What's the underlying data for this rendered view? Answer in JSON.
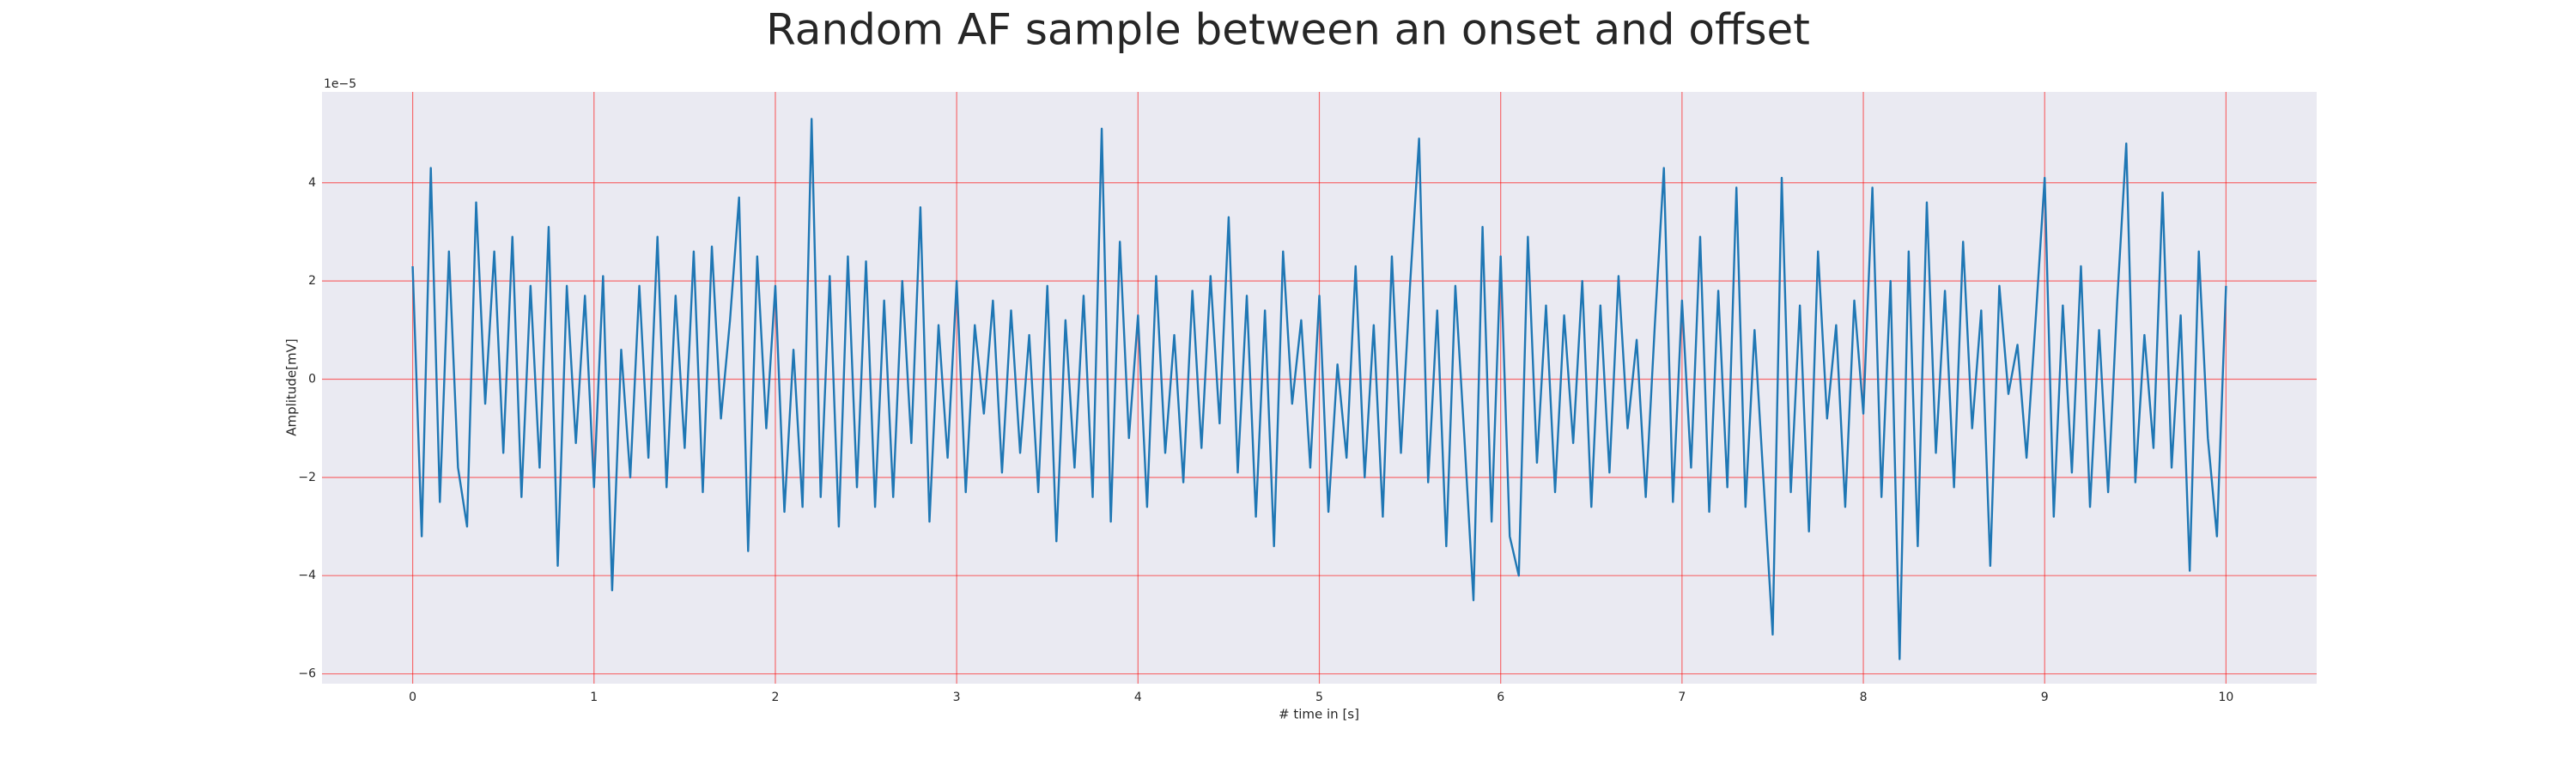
{
  "chart_data": {
    "type": "line",
    "title": "Random AF sample between an onset and offset",
    "xlabel": "# time in [s]",
    "ylabel": "Amplitude[mV]",
    "y_offset_label": "1e−5",
    "color": "#1f77b4",
    "grid": true,
    "grid_color": "#ff0000",
    "background": "#eaeaf2",
    "xlim": [
      -0.5,
      10.5
    ],
    "ylim": [
      -6.2,
      5.85
    ],
    "xticks": [
      0,
      1,
      2,
      3,
      4,
      5,
      6,
      7,
      8,
      9,
      10
    ],
    "yticks": [
      {
        "value": -6,
        "label": "−6"
      },
      {
        "value": -4,
        "label": "−4"
      },
      {
        "value": -2,
        "label": "−2"
      },
      0,
      2,
      4
    ],
    "x": [
      0,
      0.05,
      0.1,
      0.15,
      0.2,
      0.25,
      0.3,
      0.35,
      0.4,
      0.45,
      0.5,
      0.55,
      0.6,
      0.65,
      0.7,
      0.75,
      0.8,
      0.85,
      0.9,
      0.95,
      1,
      1.05,
      1.1,
      1.15,
      1.2,
      1.25,
      1.3,
      1.35,
      1.4,
      1.45,
      1.5,
      1.55,
      1.6,
      1.65,
      1.7,
      1.75,
      1.8,
      1.85,
      1.9,
      1.95,
      2,
      2.05,
      2.1,
      2.15,
      2.2,
      2.25,
      2.3,
      2.35,
      2.4,
      2.45,
      2.5,
      2.55,
      2.6,
      2.65,
      2.7,
      2.75,
      2.8,
      2.85,
      2.9,
      2.95,
      3,
      3.05,
      3.1,
      3.15,
      3.2,
      3.25,
      3.3,
      3.35,
      3.4,
      3.45,
      3.5,
      3.55,
      3.6,
      3.65,
      3.7,
      3.75,
      3.8,
      3.85,
      3.9,
      3.95,
      4,
      4.05,
      4.1,
      4.15,
      4.2,
      4.25,
      4.3,
      4.35,
      4.4,
      4.45,
      4.5,
      4.55,
      4.6,
      4.65,
      4.7,
      4.75,
      4.8,
      4.85,
      4.9,
      4.95,
      5,
      5.05,
      5.1,
      5.15,
      5.2,
      5.25,
      5.3,
      5.35,
      5.4,
      5.45,
      5.5,
      5.55,
      5.6,
      5.65,
      5.7,
      5.75,
      5.8,
      5.85,
      5.9,
      5.95,
      6,
      6.05,
      6.1,
      6.15,
      6.2,
      6.25,
      6.3,
      6.35,
      6.4,
      6.45,
      6.5,
      6.55,
      6.6,
      6.65,
      6.7,
      6.75,
      6.8,
      6.85,
      6.9,
      6.95,
      7,
      7.05,
      7.1,
      7.15,
      7.2,
      7.25,
      7.3,
      7.35,
      7.4,
      7.45,
      7.5,
      7.55,
      7.6,
      7.65,
      7.7,
      7.75,
      7.8,
      7.85,
      7.9,
      7.95,
      8,
      8.05,
      8.1,
      8.15,
      8.2,
      8.25,
      8.3,
      8.35,
      8.4,
      8.45,
      8.5,
      8.55,
      8.6,
      8.65,
      8.7,
      8.75,
      8.8,
      8.85,
      8.9,
      8.95,
      9,
      9.05,
      9.1,
      9.15,
      9.2,
      9.25,
      9.3,
      9.35,
      9.4,
      9.45,
      9.5,
      9.55,
      9.6,
      9.65,
      9.7,
      9.75,
      9.8,
      9.85,
      9.9,
      9.95,
      10
    ],
    "values": [
      2.3,
      -3.2,
      4.3,
      -2.5,
      2.6,
      -1.8,
      -3.0,
      3.6,
      -0.5,
      2.6,
      -1.5,
      2.9,
      -2.4,
      1.9,
      -1.8,
      3.1,
      -3.8,
      1.9,
      -1.3,
      1.7,
      -2.2,
      2.1,
      -4.3,
      0.6,
      -2.0,
      1.9,
      -1.6,
      2.9,
      -2.2,
      1.7,
      -1.4,
      2.6,
      -2.3,
      2.7,
      -0.8,
      1.2,
      3.7,
      -3.5,
      2.5,
      -1.0,
      1.9,
      -2.7,
      0.6,
      -2.6,
      5.3,
      -2.4,
      2.1,
      -3.0,
      2.5,
      -2.2,
      2.4,
      -2.6,
      1.6,
      -2.4,
      2.0,
      -1.3,
      3.5,
      -2.9,
      1.1,
      -1.6,
      2.0,
      -2.3,
      1.1,
      -0.7,
      1.6,
      -1.9,
      1.4,
      -1.5,
      0.9,
      -2.3,
      1.9,
      -3.3,
      1.2,
      -1.8,
      1.7,
      -2.4,
      5.1,
      -2.9,
      2.8,
      -1.2,
      1.3,
      -2.6,
      2.1,
      -1.5,
      0.9,
      -2.1,
      1.8,
      -1.4,
      2.1,
      -0.9,
      3.3,
      -1.9,
      1.7,
      -2.8,
      1.4,
      -3.4,
      2.6,
      -0.5,
      1.2,
      -1.8,
      1.7,
      -2.7,
      0.3,
      -1.6,
      2.3,
      -2.0,
      1.1,
      -2.8,
      2.5,
      -1.5,
      1.9,
      4.9,
      -2.1,
      1.4,
      -3.4,
      1.9,
      -1.2,
      -4.5,
      3.1,
      -2.9,
      2.5,
      -3.2,
      -4.0,
      2.9,
      -1.7,
      1.5,
      -2.3,
      1.3,
      -1.3,
      2.0,
      -2.6,
      1.5,
      -1.9,
      2.1,
      -1.0,
      0.8,
      -2.4,
      1.1,
      4.3,
      -2.5,
      1.6,
      -1.8,
      2.9,
      -2.7,
      1.8,
      -2.2,
      3.9,
      -2.6,
      1.0,
      -2.1,
      -5.2,
      4.1,
      -2.3,
      1.5,
      -3.1,
      2.6,
      -0.8,
      1.1,
      -2.6,
      1.6,
      -0.7,
      3.9,
      -2.4,
      2.0,
      -5.7,
      2.6,
      -3.4,
      3.6,
      -1.5,
      1.8,
      -2.2,
      2.8,
      -1.0,
      1.4,
      -3.8,
      1.9,
      -0.3,
      0.7,
      -1.6,
      1.2,
      4.1,
      -2.8,
      1.5,
      -1.9,
      2.3,
      -2.6,
      1.0,
      -2.3,
      1.6,
      4.8,
      -2.1,
      0.9,
      -1.4,
      3.8,
      -1.8,
      1.3,
      -3.9,
      2.6,
      -1.2,
      -3.2,
      1.9
    ]
  }
}
